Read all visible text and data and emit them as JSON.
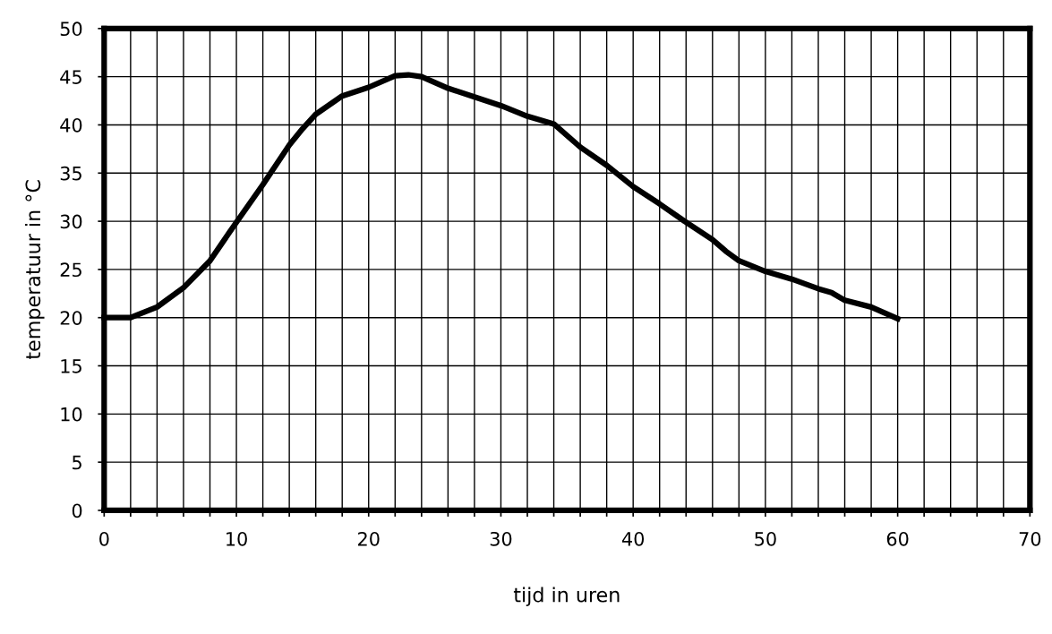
{
  "chart_data": {
    "type": "line",
    "xlabel": "tijd in uren",
    "ylabel": "temperatuur in °C",
    "x": [
      0,
      2,
      4,
      6,
      8,
      10,
      12,
      14,
      15,
      16,
      18,
      20,
      22,
      23,
      24,
      26,
      28,
      30,
      32,
      34,
      36,
      38,
      40,
      42,
      44,
      46,
      47,
      48,
      50,
      52,
      54,
      55,
      56,
      58,
      60
    ],
    "series": [
      {
        "color": "#000000",
        "values": [
          20,
          20,
          21.1,
          23.1,
          25.9,
          29.9,
          33.8,
          37.9,
          39.6,
          41.1,
          43,
          43.9,
          45.1,
          45.2,
          45,
          43.8,
          42.9,
          42,
          40.9,
          40.1,
          37.7,
          35.8,
          33.6,
          31.8,
          29.9,
          28.1,
          26.9,
          25.9,
          24.8,
          24,
          23,
          22.6,
          21.8,
          21.1,
          19.9
        ]
      }
    ],
    "xlim": [
      0,
      70
    ],
    "ylim": [
      0,
      50
    ],
    "xticks": [
      0,
      {
        "value": 2,
        "label": null
      },
      {
        "value": 4,
        "label": null
      },
      {
        "value": 6,
        "label": null
      },
      {
        "value": 8,
        "label": null
      },
      10,
      {
        "value": 12,
        "label": null
      },
      {
        "value": 14,
        "label": null
      },
      {
        "value": 16,
        "label": null
      },
      {
        "value": 18,
        "label": null
      },
      20,
      {
        "value": 22,
        "label": null
      },
      {
        "value": 24,
        "label": null
      },
      {
        "value": 26,
        "label": null
      },
      {
        "value": 28,
        "label": null
      },
      30,
      {
        "value": 32,
        "label": null
      },
      {
        "value": 34,
        "label": null
      },
      {
        "value": 36,
        "label": null
      },
      {
        "value": 38,
        "label": null
      },
      40,
      {
        "value": 42,
        "label": null
      },
      {
        "value": 44,
        "label": null
      },
      {
        "value": 46,
        "label": null
      },
      {
        "value": 48,
        "label": null
      },
      50,
      {
        "value": 52,
        "label": null
      },
      {
        "value": 54,
        "label": null
      },
      {
        "value": 56,
        "label": null
      },
      {
        "value": 58,
        "label": null
      },
      60,
      {
        "value": 62,
        "label": null
      },
      {
        "value": 64,
        "label": null
      },
      {
        "value": 66,
        "label": null
      },
      {
        "value": 68,
        "label": null
      },
      70
    ],
    "yticks": [
      0,
      5,
      10,
      15,
      20,
      25,
      30,
      35,
      40,
      45,
      50
    ],
    "grid": true,
    "marker": "none",
    "line_style": "solid",
    "legend": false
  }
}
